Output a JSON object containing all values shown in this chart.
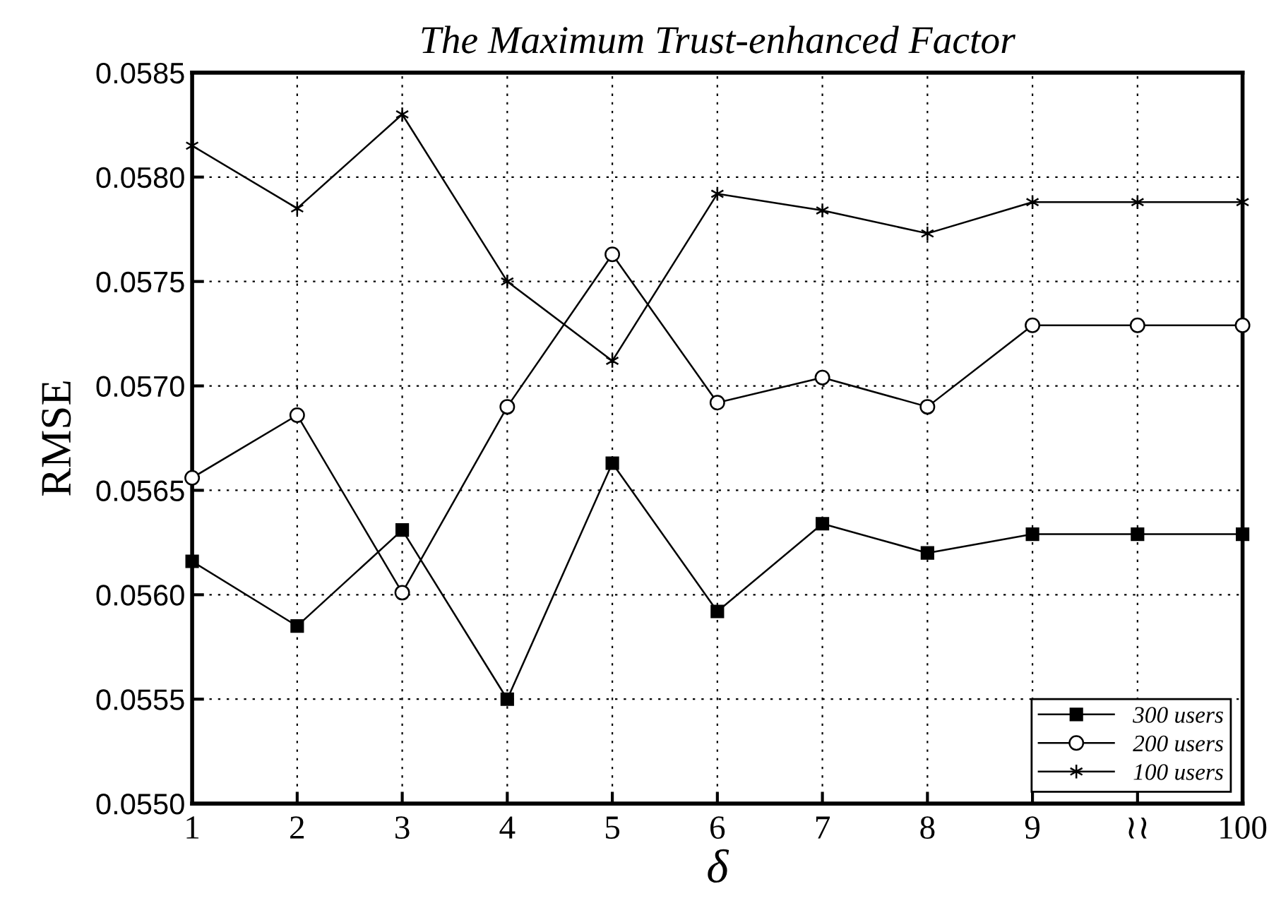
{
  "chart_data": {
    "type": "line",
    "title": "The Maximum Trust-enhanced Factor",
    "xlabel": "δ",
    "ylabel": "RMSE",
    "categories": [
      "1",
      "2",
      "3",
      "4",
      "5",
      "6",
      "7",
      "8",
      "9",
      "≀≀",
      "100"
    ],
    "series": [
      {
        "name": "300 users",
        "color": "#000000",
        "marker": "square",
        "values": [
          0.05616,
          0.05585,
          0.05631,
          0.0555,
          0.05663,
          0.05592,
          0.05634,
          0.0562,
          0.05629,
          0.05629,
          0.05629
        ]
      },
      {
        "name": "200 users",
        "color": "#000000",
        "marker": "circle",
        "values": [
          0.05656,
          0.05686,
          0.05601,
          0.0569,
          0.05763,
          0.05692,
          0.05704,
          0.0569,
          0.05729,
          0.05729,
          0.05729
        ]
      },
      {
        "name": "100 users",
        "color": "#000000",
        "marker": "cross",
        "values": [
          0.05815,
          0.05785,
          0.0583,
          0.0575,
          0.05712,
          0.05792,
          0.05784,
          0.05773,
          0.05788,
          0.05788,
          0.05788
        ]
      }
    ],
    "ylim": [
      0.055,
      0.0585
    ],
    "yticks": [
      {
        "value": 0.055,
        "label": "0.0550"
      },
      {
        "value": 0.0555,
        "label": "0.0555"
      },
      {
        "value": 0.056,
        "label": "0.0560"
      },
      {
        "value": 0.0565,
        "label": "0.0565"
      },
      {
        "value": 0.057,
        "label": "0.0570"
      },
      {
        "value": 0.0575,
        "label": "0.0575"
      },
      {
        "value": 0.058,
        "label": "0.0580"
      },
      {
        "value": 0.0585,
        "label": "0.0585"
      }
    ],
    "grid": true,
    "legend": "bottom right",
    "line_style": "solid"
  }
}
